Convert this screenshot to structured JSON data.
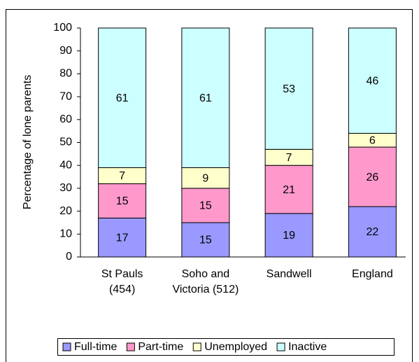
{
  "chart_data": {
    "type": "stacked_bar",
    "y_label": "Percentage of lone parents",
    "categories": [
      "St Pauls (454)",
      "Soho and Victoria (512)",
      "Sandwell",
      "England"
    ],
    "series": [
      {
        "name": "Full-time",
        "color": "#9999ff",
        "values": [
          17,
          15,
          19,
          22
        ]
      },
      {
        "name": "Part-time",
        "color": "#ff99cc",
        "values": [
          15,
          15,
          21,
          26
        ]
      },
      {
        "name": "Unemployed",
        "color": "#ffffcc",
        "values": [
          7,
          9,
          7,
          6
        ]
      },
      {
        "name": "Inactive",
        "color": "#ccffff",
        "values": [
          61,
          61,
          53,
          46
        ]
      }
    ],
    "ylim": [
      0,
      100
    ],
    "yticks": [
      0,
      10,
      20,
      30,
      40,
      50,
      60,
      70,
      80,
      90,
      100
    ],
    "legend": "bottom"
  }
}
